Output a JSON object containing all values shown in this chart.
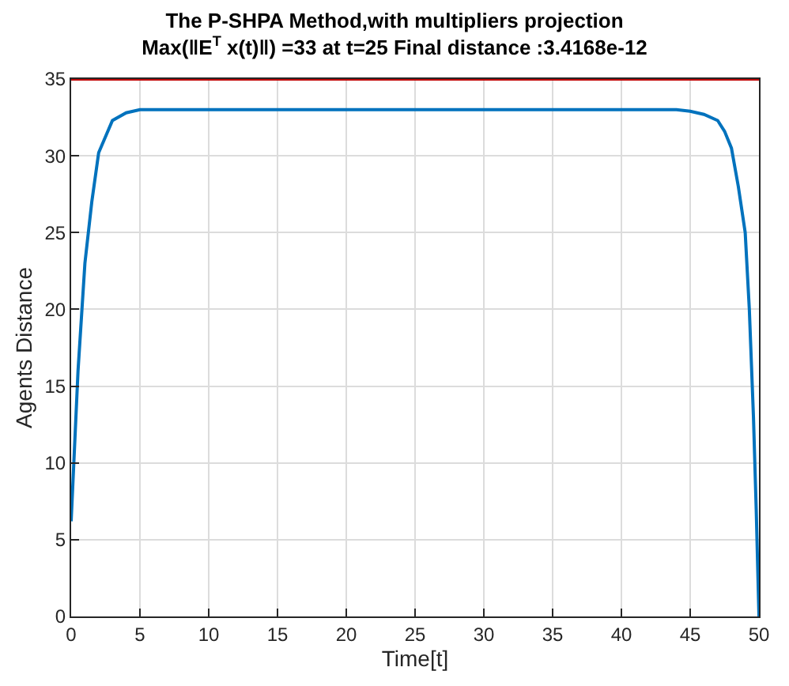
{
  "chart_data": {
    "type": "line",
    "title": "The P-SHPA Method,with multipliers projection",
    "subtitle": "Max(‖E$^{T}$ x(t)‖) =33 at t=25 Final distance :3.4168e-12",
    "xlabel": "Time[t]",
    "ylabel": "Agents Distance",
    "x": [
      0,
      0.5,
      1,
      1.5,
      2,
      3,
      4,
      5,
      10,
      20,
      25,
      30,
      40,
      44,
      45,
      46,
      47,
      47.5,
      48,
      48.5,
      49,
      49.3,
      49.6,
      49.8,
      50
    ],
    "series": [
      {
        "color": "#0072bd",
        "values": [
          6.2,
          16,
          23,
          27,
          30.2,
          32.3,
          32.8,
          33,
          33,
          33,
          33,
          33,
          33,
          33,
          32.9,
          32.7,
          32.3,
          31.6,
          30.5,
          28,
          25,
          20,
          13,
          7,
          0
        ]
      }
    ],
    "xlim": [
      0,
      50
    ],
    "ylim": [
      0,
      35
    ],
    "xticks": [
      0,
      5,
      10,
      15,
      20,
      25,
      30,
      35,
      40,
      45,
      50
    ],
    "yticks": [
      0,
      5,
      10,
      15,
      20,
      25,
      30,
      35
    ],
    "ref_lines": [
      {
        "axis": "y",
        "value": 35,
        "color": "#c00000"
      }
    ],
    "grid": true,
    "marker": "none",
    "line_style": "solid"
  }
}
